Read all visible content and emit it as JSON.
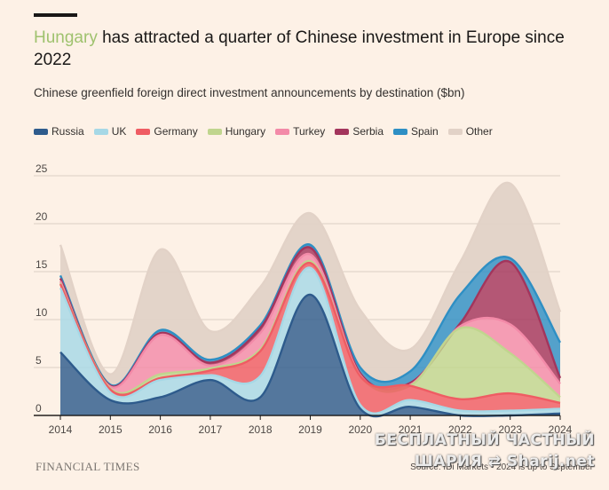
{
  "header": {
    "title_highlight": "Hungary",
    "title_rest": " has attracted a quarter of Chinese investment in Europe since 2022",
    "subtitle": "Chinese greenfield foreign direct investment announcements by destination ($bn)"
  },
  "colors": {
    "background": "#fdf1e6",
    "highlight": "#9fc26e",
    "Russia": "#2e5b8c",
    "UK": "#a6d8e6",
    "Germany": "#ef5c63",
    "Hungary": "#c0d58e",
    "Turkey": "#f38aa8",
    "Serbia": "#a3355c",
    "Spain": "#2e8fc4",
    "Other": "#e2d2c7"
  },
  "legend": [
    "Russia",
    "UK",
    "Germany",
    "Hungary",
    "Turkey",
    "Serbia",
    "Spain",
    "Other"
  ],
  "chart_data": {
    "type": "area",
    "stacked": true,
    "x": [
      2014,
      2015,
      2016,
      2017,
      2018,
      2019,
      2020,
      2021,
      2022,
      2023,
      2024
    ],
    "ylim": [
      0,
      25
    ],
    "yticks": [
      0,
      5,
      10,
      15,
      20,
      25
    ],
    "grid": true,
    "legend_position": "top",
    "series": [
      {
        "name": "Russia",
        "values": [
          6.6,
          1.6,
          1.9,
          3.7,
          1.9,
          12.6,
          0.7,
          0.9,
          0.0,
          0.0,
          0.2
        ]
      },
      {
        "name": "UK",
        "values": [
          6.7,
          0.8,
          1.8,
          0.5,
          2.2,
          2.8,
          0.4,
          0.7,
          0.5,
          0.5,
          0.5
        ]
      },
      {
        "name": "Germany",
        "values": [
          0.4,
          0.3,
          0.2,
          0.5,
          2.6,
          0.5,
          3.0,
          1.5,
          1.2,
          1.8,
          0.6
        ]
      },
      {
        "name": "Hungary",
        "values": [
          0.1,
          0.1,
          0.4,
          0.2,
          0.2,
          0.2,
          0.0,
          0.0,
          7.4,
          4.2,
          0.6
        ]
      },
      {
        "name": "Turkey",
        "values": [
          0.2,
          0.2,
          4.1,
          0.3,
          1.7,
          0.7,
          0.1,
          0.1,
          0.2,
          3.0,
          1.4
        ]
      },
      {
        "name": "Serbia",
        "values": [
          0.3,
          0.1,
          0.2,
          0.3,
          0.5,
          0.7,
          0.2,
          0.2,
          0.3,
          6.5,
          0.6
        ]
      },
      {
        "name": "Spain",
        "values": [
          0.3,
          0.1,
          0.3,
          0.3,
          0.3,
          0.3,
          0.6,
          1.2,
          3.0,
          0.4,
          3.7
        ]
      },
      {
        "name": "Other",
        "values": [
          3.2,
          1.1,
          8.4,
          3.0,
          4.0,
          3.3,
          6.0,
          2.3,
          3.4,
          7.8,
          3.2
        ]
      }
    ]
  },
  "footer": {
    "logo": "FINANCIAL TIMES",
    "source": "Source: fDi Markets • 2024 is up to September",
    "watermark_line1": "БЕСПЛАТНЫЙ ЧАСТНЫЙ",
    "watermark_line2": "ШАРИЯ ⇄ Sharij.net"
  }
}
